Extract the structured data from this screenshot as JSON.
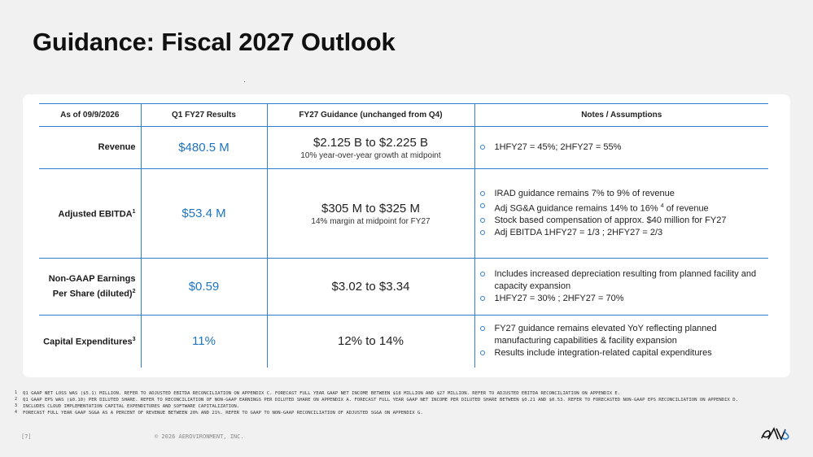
{
  "title": "Guidance: Fiscal 2027 Outlook",
  "table": {
    "headers": [
      "As of 09/9/2026",
      "Q1 FY27 Results",
      "FY27 Guidance (unchanged from Q4)",
      "Notes / Assumptions"
    ],
    "rows": [
      {
        "metric": "Revenue",
        "sup": "",
        "q1": "$480.5 M",
        "guidance": "$2.125 B to $2.225 B",
        "guidance_sub": "10% year-over-year growth at midpoint",
        "notes": [
          "1HFY27 = 45%; 2HFY27 = 55%"
        ]
      },
      {
        "metric": "Adjusted EBITDA",
        "sup": "1",
        "q1": "$53.4 M",
        "guidance": "$305 M to $325 M",
        "guidance_sub": "14% margin at midpoint for FY27",
        "notes": [
          "IRAD guidance remains 7% to 9% of revenue",
          "Adj SG&A guidance remains 14% to 16% ",
          "Stock based compensation of approx. $40 million for FY27",
          "Adj EBITDA 1HFY27 = 1/3 ;  2HFY27 = 2/3"
        ],
        "note2_sup": "4",
        "note2_tail": " of revenue"
      },
      {
        "metric_line1": "Non-GAAP Earnings",
        "metric_line2": "Per Share (diluted)",
        "sup": "2",
        "q1": "$0.59",
        "guidance": "$3.02 to $3.34",
        "guidance_sub": "",
        "notes": [
          "Includes increased depreciation resulting from planned facility and capacity expansion",
          "1HFY27 = 30% ; 2HFY27 = 70%"
        ]
      },
      {
        "metric": "Capital Expenditures",
        "sup": "3",
        "q1": "11%",
        "guidance": "12% to 14%",
        "guidance_sub": "",
        "notes": [
          "FY27 guidance remains elevated YoY reflecting planned  manufacturing capabilities & facility expansion",
          "Results include integration-related capital expenditures"
        ]
      }
    ]
  },
  "footnotes": [
    {
      "num": "1",
      "text": "Q1 GAAP NET LOSS WAS ($5.1) MILLION. REFER TO ADJUSTED EBITDA RECONCILIATION ON APPENDIX C. FORECAST FULL YEAR GAAP NET INCOME BETWEEN $18 MILLION AND $27 MILLION. REFER TO ADJUSTED EBITDA RECONCILIATION ON APPENDIX E."
    },
    {
      "num": "2",
      "text": "Q1 GAAP EPS WAS ($0.10) PER DILUTED SHARE. REFER TO RECONCILIATION OF NON-GAAP EARNINGS PER DILUTED SHARE ON APPENDIX A. FORECAST FULL YEAR GAAP NET INCOME PER DILUTED SHARE BETWEEN $0.21 AND $0.53. REFER TO FORECASTED NON-GAAP EPS RECONCILIATION ON APPENDIX D."
    },
    {
      "num": "3",
      "text": "INCLUDES CLOUD IMPLEMENTATION CAPITAL EXPENDITURES AND SOFTWARE CAPITALIZATION."
    },
    {
      "num": "4",
      "text": "FORECAST FULL YEAR GAAP SG&A AS A PERCENT OF REVENUE BETWEEN 20% AND 21%. REFER TO GAAP TO NON-GAAP RECONCILIATION OF ADJUSTED SG&A ON APPENDIX G."
    }
  ],
  "page_number": "[7]",
  "copyright": "© 2026 AEROVIRONMENT, INC.",
  "logo_icon": "av-logo-icon",
  "colors": {
    "accent": "#2f7fd0",
    "value_blue": "#1f74c4",
    "background": "#f1f1f1"
  }
}
